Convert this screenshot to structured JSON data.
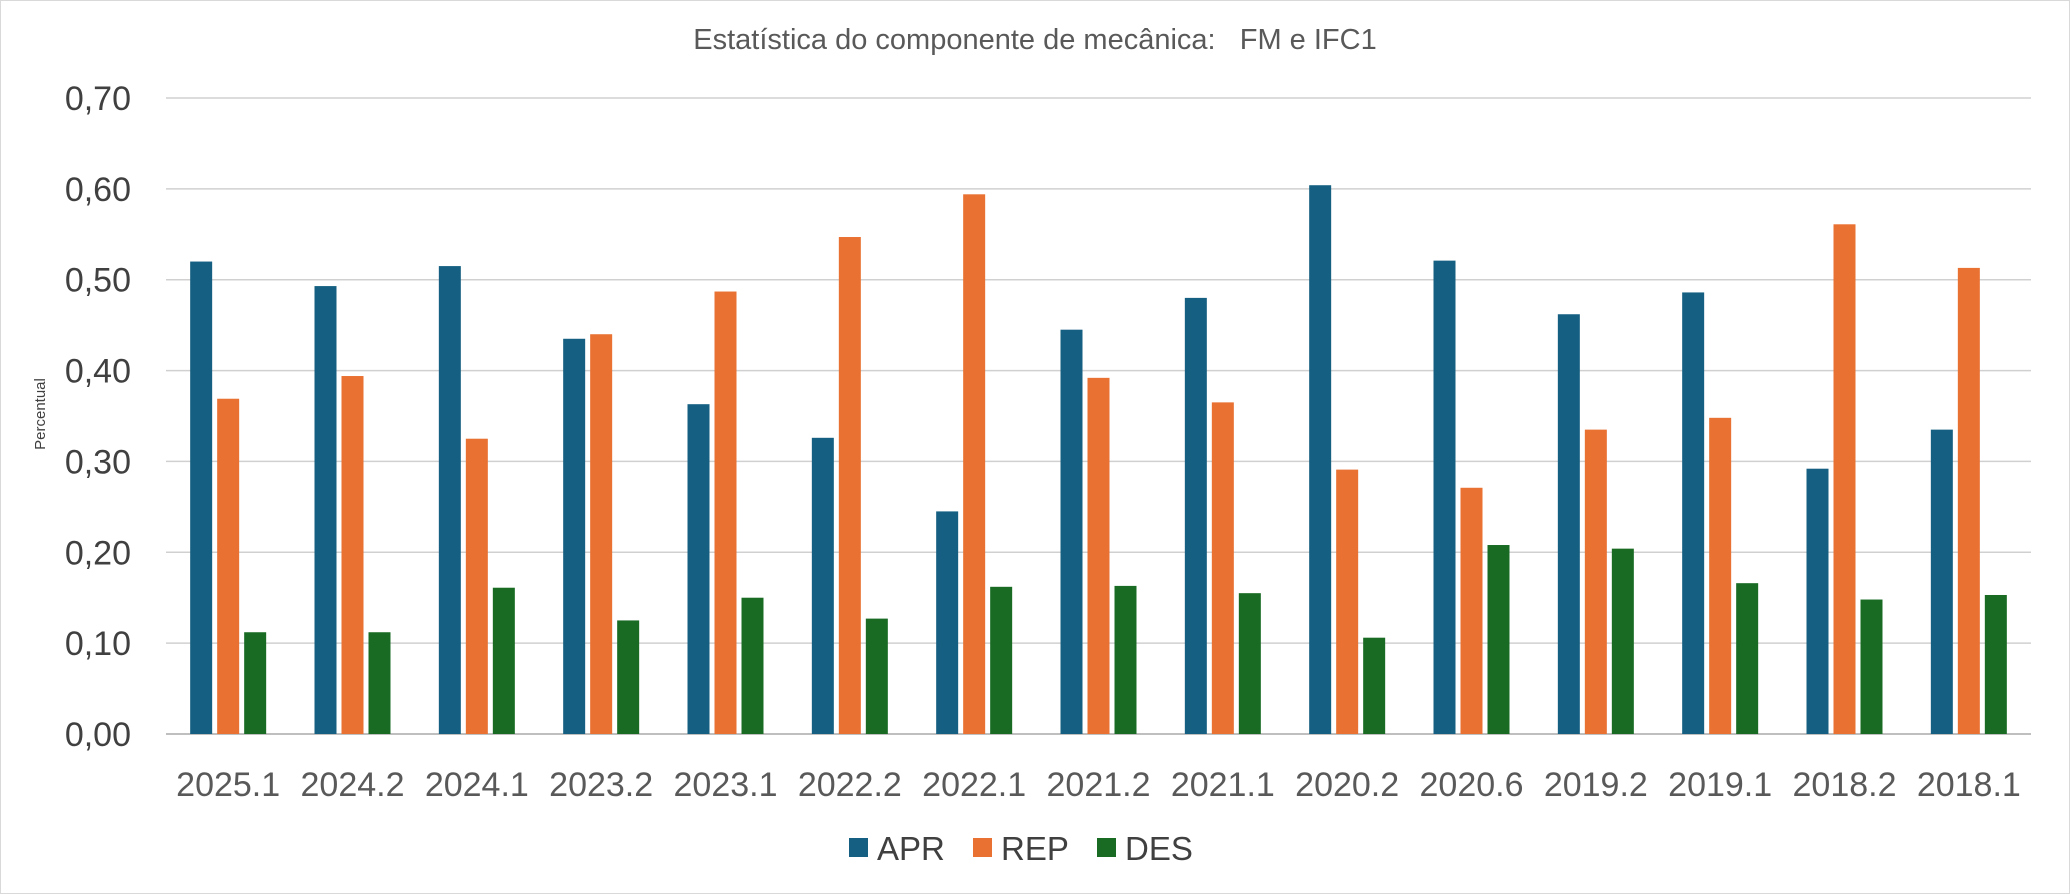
{
  "chart_data": {
    "type": "bar",
    "title": "Estatística do componente de mecânica:   FM e IFC1",
    "ylabel": "Percentual",
    "xlabel": "",
    "ylim": [
      0,
      0.7
    ],
    "yticks": [
      "0,00",
      "0,10",
      "0,20",
      "0,30",
      "0,40",
      "0,50",
      "0,60",
      "0,70"
    ],
    "grid": true,
    "legend_position": "bottom",
    "categories": [
      "2025.1",
      "2024.2",
      "2024.1",
      "2023.2",
      "2023.1",
      "2022.2",
      "2022.1",
      "2021.2",
      "2021.1",
      "2020.2",
      "2020.6",
      "2019.2",
      "2019.1",
      "2018.2",
      "2018.1"
    ],
    "series": [
      {
        "name": "APR",
        "color": "#156082",
        "values": [
          0.52,
          0.493,
          0.515,
          0.435,
          0.363,
          0.326,
          0.245,
          0.445,
          0.48,
          0.604,
          0.521,
          0.462,
          0.486,
          0.292,
          0.335
        ]
      },
      {
        "name": "REP",
        "color": "#E97132",
        "values": [
          0.369,
          0.394,
          0.325,
          0.44,
          0.487,
          0.547,
          0.594,
          0.392,
          0.365,
          0.291,
          0.271,
          0.335,
          0.348,
          0.561,
          0.513
        ]
      },
      {
        "name": "DES",
        "color": "#196B24",
        "values": [
          0.112,
          0.112,
          0.161,
          0.125,
          0.15,
          0.127,
          0.162,
          0.163,
          0.155,
          0.106,
          0.208,
          0.204,
          0.166,
          0.148,
          0.153
        ]
      }
    ]
  }
}
